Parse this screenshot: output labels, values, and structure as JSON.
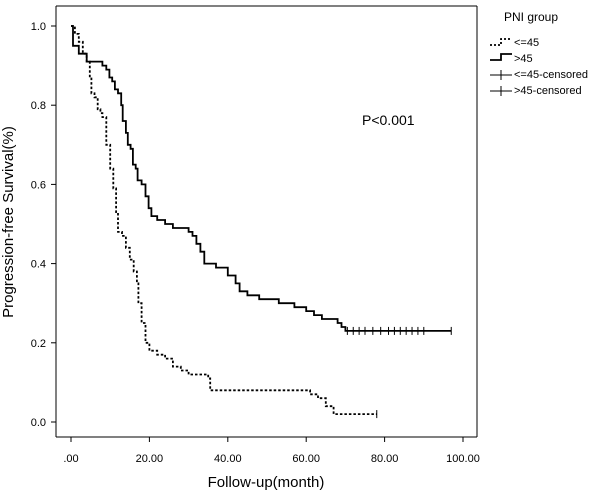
{
  "chart_data": {
    "type": "line",
    "title": "",
    "xlabel": "Follow-up(month)",
    "ylabel": "Progression-free Survival(%)",
    "xlim": [
      0,
      100
    ],
    "ylim": [
      0,
      1.0
    ],
    "x_ticks": [
      0,
      20,
      40,
      60,
      80,
      100
    ],
    "x_tick_labels": [
      ".00",
      "20.00",
      "40.00",
      "60.00",
      "80.00",
      "100.00"
    ],
    "y_ticks": [
      0,
      0.2,
      0.4,
      0.6,
      0.8,
      1.0
    ],
    "y_tick_labels": [
      "0.0",
      "0.2",
      "0.4",
      "0.6",
      "0.8",
      "1.0"
    ],
    "grid": false,
    "annotation": "P<0.001",
    "legend": {
      "title": "PNI group",
      "placement": "right",
      "entries": [
        "<=45",
        ">45",
        "<=45-censored",
        ">45-censored"
      ]
    },
    "series": [
      {
        "name": "<=45",
        "style": "dashed",
        "steps": [
          [
            0,
            1.0
          ],
          [
            1,
            0.98
          ],
          [
            2,
            0.96
          ],
          [
            3,
            0.93
          ],
          [
            4,
            0.91
          ],
          [
            4.8,
            0.87
          ],
          [
            5.2,
            0.83
          ],
          [
            6,
            0.82
          ],
          [
            6.8,
            0.79
          ],
          [
            7.5,
            0.78
          ],
          [
            8,
            0.77
          ],
          [
            9,
            0.7
          ],
          [
            10,
            0.64
          ],
          [
            10.8,
            0.59
          ],
          [
            11.5,
            0.53
          ],
          [
            12,
            0.48
          ],
          [
            13,
            0.47
          ],
          [
            14,
            0.44
          ],
          [
            15,
            0.41
          ],
          [
            16,
            0.38
          ],
          [
            16.8,
            0.35
          ],
          [
            17.2,
            0.3
          ],
          [
            18,
            0.25
          ],
          [
            19,
            0.2
          ],
          [
            20,
            0.18
          ],
          [
            22,
            0.17
          ],
          [
            24,
            0.16
          ],
          [
            26,
            0.14
          ],
          [
            28,
            0.13
          ],
          [
            30,
            0.12
          ],
          [
            35,
            0.11
          ],
          [
            35.5,
            0.08
          ],
          [
            61,
            0.07
          ],
          [
            63,
            0.06
          ],
          [
            65,
            0.04
          ],
          [
            67,
            0.02
          ],
          [
            78,
            0.02
          ]
        ],
        "censored_x": [
          78
        ]
      },
      {
        "name": ">45",
        "style": "solid",
        "steps": [
          [
            0,
            1.0
          ],
          [
            0.5,
            0.95
          ],
          [
            2,
            0.93
          ],
          [
            4,
            0.91
          ],
          [
            8,
            0.9
          ],
          [
            9,
            0.89
          ],
          [
            9.8,
            0.87
          ],
          [
            10.5,
            0.86
          ],
          [
            11.2,
            0.84
          ],
          [
            12,
            0.83
          ],
          [
            12.8,
            0.8
          ],
          [
            13.2,
            0.76
          ],
          [
            14,
            0.73
          ],
          [
            14.5,
            0.7
          ],
          [
            15.2,
            0.69
          ],
          [
            15.8,
            0.65
          ],
          [
            16.5,
            0.64
          ],
          [
            17,
            0.61
          ],
          [
            18,
            0.6
          ],
          [
            19,
            0.57
          ],
          [
            19.8,
            0.54
          ],
          [
            20.5,
            0.52
          ],
          [
            22,
            0.51
          ],
          [
            24,
            0.5
          ],
          [
            26,
            0.49
          ],
          [
            30,
            0.48
          ],
          [
            31,
            0.47
          ],
          [
            32,
            0.45
          ],
          [
            33,
            0.43
          ],
          [
            34,
            0.4
          ],
          [
            37,
            0.39
          ],
          [
            40,
            0.37
          ],
          [
            42,
            0.35
          ],
          [
            43,
            0.33
          ],
          [
            45,
            0.32
          ],
          [
            48,
            0.31
          ],
          [
            53,
            0.3
          ],
          [
            57,
            0.29
          ],
          [
            60,
            0.28
          ],
          [
            62,
            0.27
          ],
          [
            64,
            0.26
          ],
          [
            68,
            0.25
          ],
          [
            69,
            0.24
          ],
          [
            70,
            0.23
          ],
          [
            97,
            0.23
          ]
        ],
        "censored_x": [
          70.5,
          72,
          73.5,
          75,
          77,
          79,
          81,
          82.5,
          84,
          85.5,
          87,
          88.5,
          90,
          97
        ]
      }
    ]
  }
}
